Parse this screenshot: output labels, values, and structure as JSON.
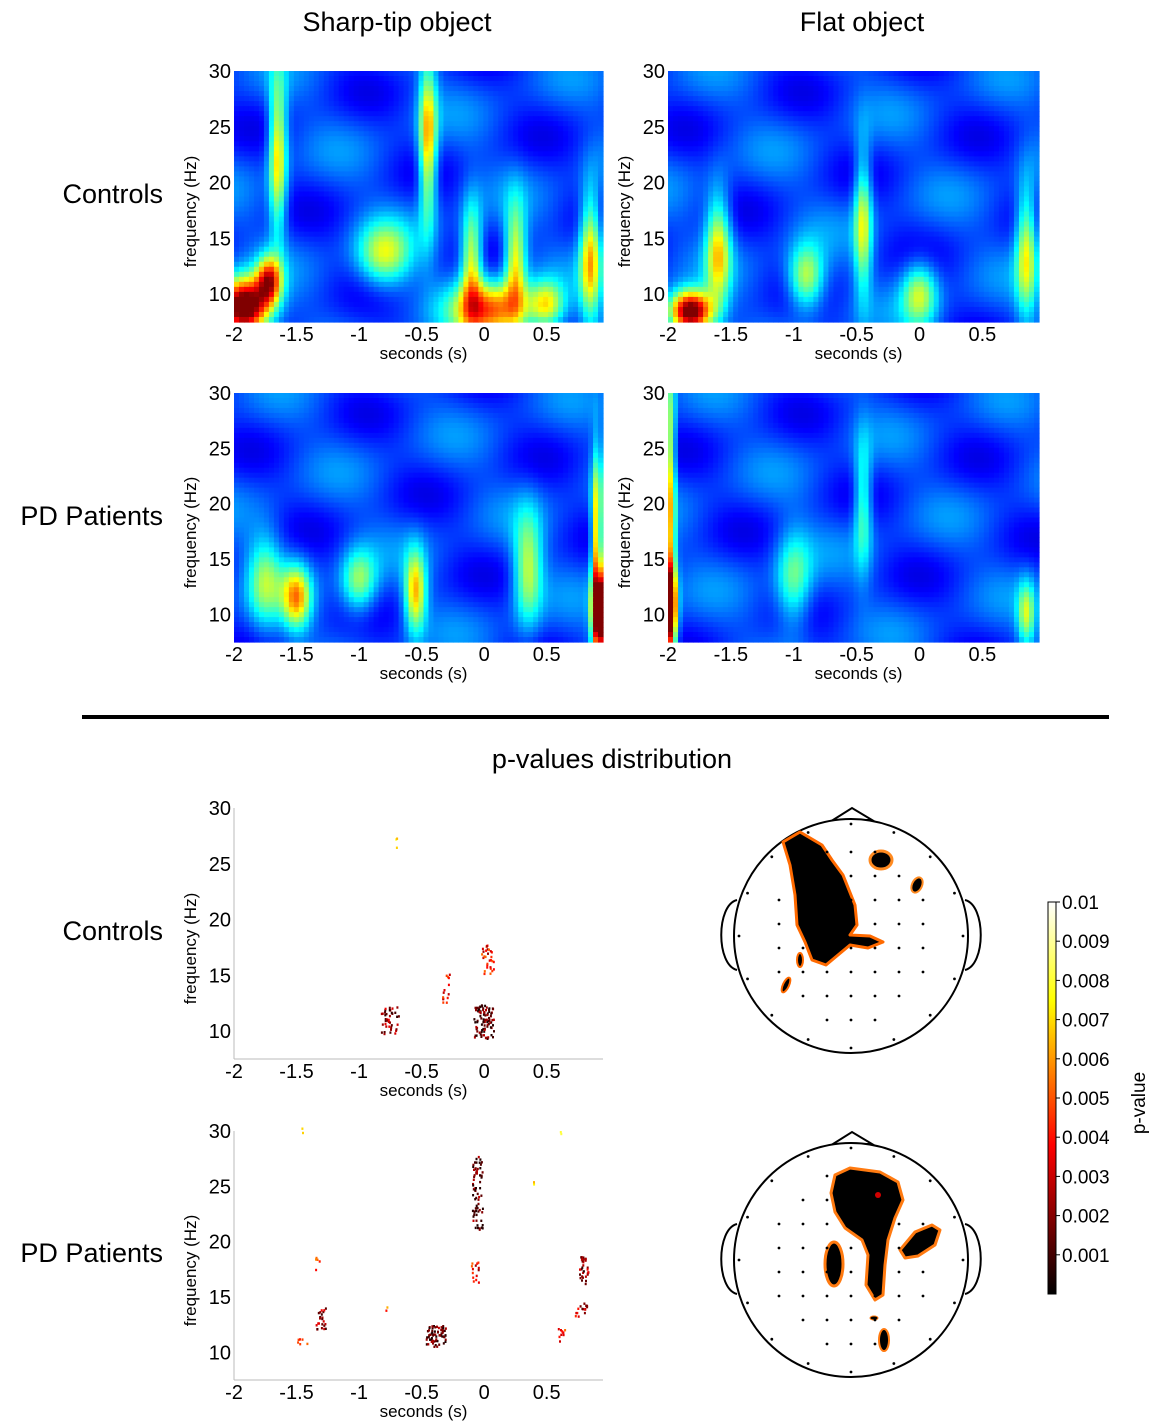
{
  "figure": {
    "column_titles": [
      "Sharp-tip object",
      "Flat object"
    ],
    "row_labels": [
      "Controls",
      "PD Patients"
    ],
    "section_title": "p-values distribution",
    "bottom_row_labels": [
      "Controls",
      "PD Patients"
    ]
  },
  "colorbar": {
    "label": "p-value",
    "ticks": [
      "0.01",
      "0.009",
      "0.008",
      "0.007",
      "0.006",
      "0.005",
      "0.004",
      "0.003",
      "0.002",
      "0.001"
    ],
    "range": [
      0,
      0.01
    ],
    "colormap": "hot"
  },
  "chart_data": [
    {
      "type": "heatmap",
      "panel": "Controls / Sharp-tip object",
      "xlabel": "seconds (s)",
      "ylabel": "frequency (Hz)",
      "xticks": [
        "-2",
        "-1.5",
        "-1",
        "-0.5",
        "0",
        "0.5"
      ],
      "yticks": [
        "10",
        "15",
        "20",
        "25",
        "30"
      ],
      "xlim": [
        -2,
        0.95
      ],
      "ylim": [
        7.5,
        30
      ],
      "colormap": "jet",
      "hotspots": [
        {
          "t": -1.92,
          "f": 8.8,
          "v": 1.0,
          "st": 0.14,
          "sf": 1.8
        },
        {
          "t": -1.72,
          "f": 11.2,
          "v": 0.6,
          "st": 0.07,
          "sf": 1.5
        },
        {
          "t": -1.65,
          "f": 22.5,
          "v": 0.48,
          "st": 0.05,
          "sf": 5.0
        },
        {
          "t": -0.45,
          "f": 23.5,
          "v": 0.52,
          "st": 0.05,
          "sf": 5.0
        },
        {
          "t": 0.05,
          "f": 8.6,
          "v": 0.58,
          "st": 0.22,
          "sf": 1.8
        },
        {
          "t": -0.1,
          "f": 13.0,
          "v": 0.45,
          "st": 0.06,
          "sf": 3.5
        },
        {
          "t": 0.25,
          "f": 13.0,
          "v": 0.45,
          "st": 0.06,
          "sf": 3.5
        },
        {
          "t": 0.85,
          "f": 13.5,
          "v": 0.5,
          "st": 0.06,
          "sf": 4.0
        },
        {
          "t": -0.8,
          "f": 13.5,
          "v": 0.38,
          "st": 0.15,
          "sf": 2.0
        },
        {
          "t": 0.5,
          "f": 9.0,
          "v": 0.4,
          "st": 0.1,
          "sf": 1.5
        }
      ]
    },
    {
      "type": "heatmap",
      "panel": "Controls / Flat object",
      "xlabel": "seconds (s)",
      "ylabel": "frequency (Hz)",
      "xticks": [
        "-2",
        "-1.5",
        "-1",
        "-0.5",
        "0",
        "0.5"
      ],
      "yticks": [
        "10",
        "15",
        "20",
        "25",
        "30"
      ],
      "xlim": [
        -2,
        0.95
      ],
      "ylim": [
        7.5,
        30
      ],
      "colormap": "jet",
      "hotspots": [
        {
          "t": -1.82,
          "f": 8.4,
          "v": 0.95,
          "st": 0.12,
          "sf": 1.3
        },
        {
          "t": -1.6,
          "f": 14.0,
          "v": 0.45,
          "st": 0.07,
          "sf": 3.5
        },
        {
          "t": -0.9,
          "f": 11.5,
          "v": 0.42,
          "st": 0.1,
          "sf": 2.0
        },
        {
          "t": -0.45,
          "f": 16.5,
          "v": 0.4,
          "st": 0.05,
          "sf": 4.5
        },
        {
          "t": 0.0,
          "f": 10.0,
          "v": 0.38,
          "st": 0.1,
          "sf": 2.0
        },
        {
          "t": 0.85,
          "f": 14.0,
          "v": 0.42,
          "st": 0.06,
          "sf": 4.0
        }
      ]
    },
    {
      "type": "heatmap",
      "panel": "PD Patients / Sharp-tip object",
      "xlabel": "seconds (s)",
      "ylabel": "frequency (Hz)",
      "xticks": [
        "-2",
        "-1.5",
        "-1",
        "-0.5",
        "0",
        "0.5"
      ],
      "yticks": [
        "10",
        "15",
        "20",
        "25",
        "30"
      ],
      "xlim": [
        -2,
        0.95
      ],
      "ylim": [
        7.5,
        30
      ],
      "colormap": "jet",
      "hotspots": [
        {
          "t": -1.5,
          "f": 11.5,
          "v": 0.5,
          "st": 0.08,
          "sf": 2.0
        },
        {
          "t": -0.55,
          "f": 12.0,
          "v": 0.5,
          "st": 0.06,
          "sf": 2.5
        },
        {
          "t": -1.0,
          "f": 13.0,
          "v": 0.35,
          "st": 0.1,
          "sf": 2.0
        },
        {
          "t": 0.35,
          "f": 14.0,
          "v": 0.38,
          "st": 0.08,
          "sf": 3.5
        },
        {
          "t": 0.92,
          "f": 10.0,
          "v": 1.0,
          "st": 0.04,
          "sf": 2.5
        },
        {
          "t": 0.9,
          "f": 17.0,
          "v": 0.55,
          "st": 0.03,
          "sf": 5.0
        },
        {
          "t": -1.75,
          "f": 13.0,
          "v": 0.3,
          "st": 0.1,
          "sf": 3.0
        }
      ]
    },
    {
      "type": "heatmap",
      "panel": "PD Patients / Flat object",
      "xlabel": "seconds (s)",
      "ylabel": "frequency (Hz)",
      "xticks": [
        "-2",
        "-1.5",
        "-1",
        "-0.5",
        "0",
        "0.5"
      ],
      "yticks": [
        "10",
        "15",
        "20",
        "25",
        "30"
      ],
      "xlim": [
        -2,
        0.95
      ],
      "ylim": [
        7.5,
        30
      ],
      "colormap": "jet",
      "hotspots": [
        {
          "t": -1.99,
          "f": 10.5,
          "v": 1.0,
          "st": 0.04,
          "sf": 3.0
        },
        {
          "t": -1.97,
          "f": 22.0,
          "v": 0.5,
          "st": 0.02,
          "sf": 8.0
        },
        {
          "t": -1.0,
          "f": 13.0,
          "v": 0.3,
          "st": 0.1,
          "sf": 3.0
        },
        {
          "t": -0.45,
          "f": 20.0,
          "v": 0.3,
          "st": 0.05,
          "sf": 4.0
        },
        {
          "t": 0.85,
          "f": 10.0,
          "v": 0.35,
          "st": 0.05,
          "sf": 2.0
        }
      ]
    },
    {
      "type": "scatter",
      "panel": "p-values distribution / Controls",
      "xlabel": "seconds (s)",
      "ylabel": "frequency (Hz)",
      "xticks": [
        "-2",
        "-1.5",
        "-1",
        "-0.5",
        "0",
        "0.5"
      ],
      "yticks": [
        "10",
        "15",
        "20",
        "25",
        "30"
      ],
      "xlim": [
        -2,
        0.95
      ],
      "ylim": [
        7.5,
        30
      ],
      "clusters": [
        {
          "t": -0.7,
          "f": 27.0,
          "p": 0.008,
          "dt": 0.02,
          "df": 0.6,
          "n": 3
        },
        {
          "t": -0.75,
          "f": 11.0,
          "p": 0.002,
          "dt": 0.07,
          "df": 1.3,
          "n": 40
        },
        {
          "t": -0.3,
          "f": 13.8,
          "p": 0.004,
          "dt": 0.03,
          "df": 1.3,
          "n": 14
        },
        {
          "t": 0.0,
          "f": 10.8,
          "p": 0.001,
          "dt": 0.08,
          "df": 1.5,
          "n": 90
        },
        {
          "t": 0.03,
          "f": 16.3,
          "p": 0.004,
          "dt": 0.05,
          "df": 1.4,
          "n": 30
        }
      ]
    },
    {
      "type": "scatter",
      "panel": "p-values distribution / PD Patients",
      "xlabel": "seconds (s)",
      "ylabel": "frequency (Hz)",
      "xticks": [
        "-2",
        "-1.5",
        "-1",
        "-0.5",
        "0",
        "0.5"
      ],
      "yticks": [
        "10",
        "15",
        "20",
        "25",
        "30"
      ],
      "xlim": [
        -2,
        0.95
      ],
      "ylim": [
        7.5,
        30
      ],
      "clusters": [
        {
          "t": -1.45,
          "f": 10.9,
          "p": 0.004,
          "dt": 0.04,
          "df": 0.3,
          "n": 6
        },
        {
          "t": -1.3,
          "f": 13.0,
          "p": 0.002,
          "dt": 0.04,
          "df": 1.0,
          "n": 24
        },
        {
          "t": -1.33,
          "f": 18.0,
          "p": 0.006,
          "dt": 0.02,
          "df": 0.6,
          "n": 5
        },
        {
          "t": -0.38,
          "f": 11.4,
          "p": 0.001,
          "dt": 0.08,
          "df": 1.0,
          "n": 70
        },
        {
          "t": -0.05,
          "f": 24.3,
          "p": 0.001,
          "dt": 0.04,
          "df": 3.5,
          "n": 70
        },
        {
          "t": -0.07,
          "f": 17.2,
          "p": 0.004,
          "dt": 0.03,
          "df": 1.0,
          "n": 14
        },
        {
          "t": 0.8,
          "f": 17.3,
          "p": 0.002,
          "dt": 0.04,
          "df": 1.3,
          "n": 30
        },
        {
          "t": 0.78,
          "f": 13.8,
          "p": 0.003,
          "dt": 0.05,
          "df": 0.6,
          "n": 16
        },
        {
          "t": 0.62,
          "f": 11.5,
          "p": 0.005,
          "dt": 0.03,
          "df": 0.6,
          "n": 10
        },
        {
          "t": 0.4,
          "f": 25.0,
          "p": 0.008,
          "dt": 0.01,
          "df": 0.4,
          "n": 2
        },
        {
          "t": -1.45,
          "f": 30.0,
          "p": 0.008,
          "dt": 0.01,
          "df": 0.3,
          "n": 2
        },
        {
          "t": 0.62,
          "f": 30.0,
          "p": 0.008,
          "dt": 0.01,
          "df": 0.3,
          "n": 2
        },
        {
          "t": -0.78,
          "f": 13.8,
          "p": 0.006,
          "dt": 0.01,
          "df": 0.3,
          "n": 2
        }
      ]
    }
  ]
}
